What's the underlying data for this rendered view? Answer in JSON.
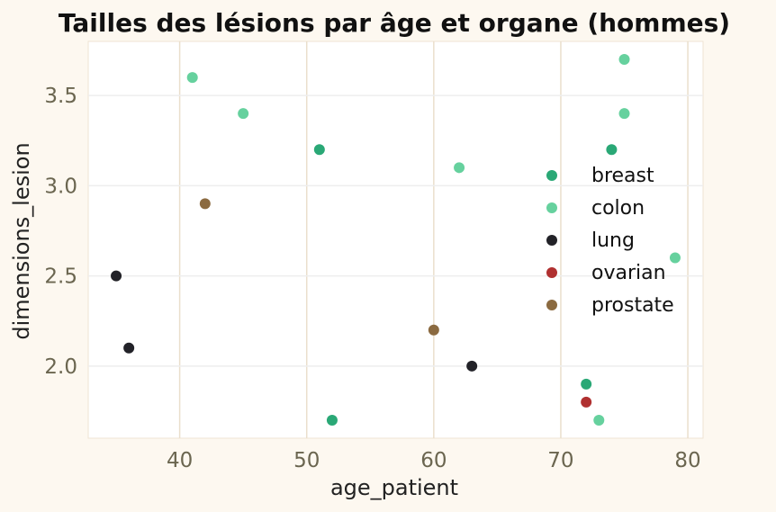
{
  "chart_data": {
    "type": "scatter",
    "title": "Tailles des lésions par âge et organe (hommes)",
    "xlabel": "age_patient",
    "ylabel": "dimensions_lesion",
    "xlim": [
      32.8,
      81.2
    ],
    "ylim": [
      1.6,
      3.8
    ],
    "x_ticks": [
      40,
      50,
      60,
      70,
      80
    ],
    "y_ticks": [
      2.0,
      2.5,
      3.0,
      3.5
    ],
    "x_tick_labels": [
      "40",
      "50",
      "60",
      "70",
      "80"
    ],
    "y_tick_labels": [
      "2.0",
      "2.5",
      "3.0",
      "3.5"
    ],
    "grid": true,
    "legend_position": "right",
    "series": [
      {
        "name": "breast",
        "color": "#2aa876",
        "points": [
          [
            51,
            3.2
          ],
          [
            52,
            1.7
          ],
          [
            74,
            3.2
          ],
          [
            72,
            1.9
          ]
        ]
      },
      {
        "name": "colon",
        "color": "#66d19e",
        "points": [
          [
            41,
            3.6
          ],
          [
            45,
            3.4
          ],
          [
            62,
            3.1
          ],
          [
            75,
            3.7
          ],
          [
            75,
            3.4
          ],
          [
            79,
            2.6
          ],
          [
            73,
            1.7
          ]
        ]
      },
      {
        "name": "lung",
        "color": "#222228",
        "points": [
          [
            35,
            2.5
          ],
          [
            36,
            2.1
          ],
          [
            63,
            2.0
          ]
        ]
      },
      {
        "name": "ovarian",
        "color": "#b03030",
        "points": [
          [
            72,
            1.8
          ]
        ]
      },
      {
        "name": "prostate",
        "color": "#8b6a40",
        "points": [
          [
            42,
            2.9
          ],
          [
            60,
            2.2
          ]
        ]
      }
    ]
  }
}
